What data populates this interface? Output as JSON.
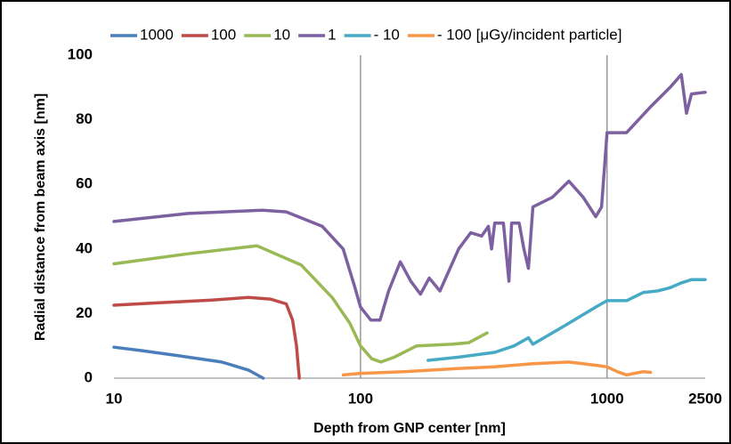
{
  "chart_data": {
    "type": "line",
    "x_label": "Depth from GNP center [nm]",
    "y_label": "Radial distance from beam axis [nm]",
    "legend_unit": "[μGy/incident particle]",
    "legend_position": "top",
    "xscale": "log",
    "xlim": [
      10,
      2500
    ],
    "xticks": [
      10,
      100,
      1000,
      2500
    ],
    "ylim": [
      0,
      100
    ],
    "yticks": [
      0,
      20,
      40,
      60,
      80,
      100
    ],
    "grid_x": true,
    "series": [
      {
        "name": "1000",
        "color": "#4a7ebb",
        "x": [
          10,
          13,
          18.1,
          27.4,
          35.1,
          40.3
        ],
        "values": [
          9.6,
          8.5,
          7,
          5,
          2.5,
          0
        ]
      },
      {
        "name": "100",
        "color": "#be4b48",
        "x": [
          10,
          15,
          25,
          35,
          43,
          50,
          53,
          55,
          56,
          56.5
        ],
        "values": [
          22.6,
          23.3,
          24.2,
          25,
          24.5,
          23,
          18,
          10,
          3,
          0
        ]
      },
      {
        "name": "10",
        "color": "#98b954",
        "x": [
          10,
          20,
          38,
          57.5,
          76.7,
          90.5,
          100,
          111,
          121,
          137,
          169,
          234,
          275,
          326
        ],
        "values": [
          35.4,
          38.5,
          41,
          35,
          25,
          17,
          10,
          6,
          5,
          6.5,
          10,
          10.5,
          11,
          14
        ]
      },
      {
        "name": "1",
        "color": "#7d60a0",
        "x": [
          10,
          20,
          40,
          50,
          70,
          85,
          95,
          100,
          110,
          120,
          130,
          145,
          160,
          175,
          190,
          210,
          250,
          280,
          310,
          330,
          340,
          350,
          380,
          400,
          410,
          440,
          460,
          480,
          500,
          600,
          700,
          800,
          900,
          950,
          1000,
          1200,
          1500,
          1800,
          2000,
          2100,
          2200,
          2500
        ],
        "values": [
          48.5,
          51,
          52,
          51.5,
          47,
          40,
          28,
          22,
          18,
          18,
          27,
          36,
          30,
          26,
          31,
          27,
          40,
          45,
          44,
          47,
          40,
          48,
          48,
          30,
          48,
          48,
          40,
          34,
          53,
          56,
          61,
          56,
          50,
          53,
          76,
          76,
          84,
          90,
          94,
          82,
          88,
          88.5
        ]
      },
      {
        "name": "- 10",
        "color": "#46aac5",
        "x": [
          188,
          250,
          350,
          420,
          480,
          500,
          700,
          900,
          1000,
          1200,
          1400,
          1600,
          1800,
          2000,
          2200,
          2500
        ],
        "values": [
          5.5,
          6.5,
          8,
          10,
          12.5,
          10.5,
          17,
          22,
          24,
          24,
          26.5,
          27,
          28,
          29.5,
          30.5,
          30.5
        ]
      },
      {
        "name": "- 100",
        "color": "#f79646",
        "x": [
          85.2,
          100,
          150,
          250,
          350,
          500,
          700,
          900,
          1000,
          1100,
          1200,
          1400,
          1500
        ],
        "values": [
          1,
          1.5,
          2,
          3,
          3.5,
          4.5,
          5,
          4,
          3.5,
          2,
          1,
          2,
          1.8
        ]
      }
    ]
  }
}
